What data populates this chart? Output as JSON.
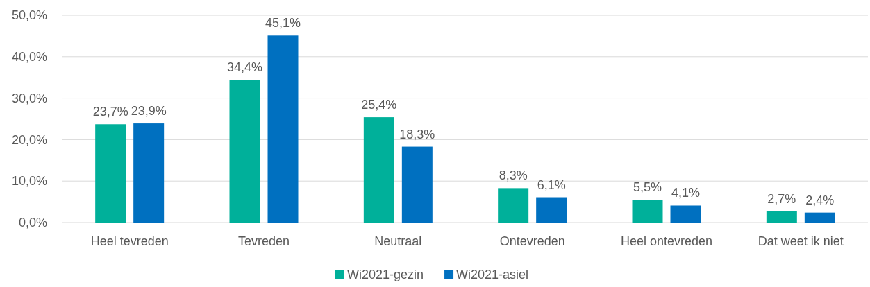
{
  "chart_data": {
    "type": "bar",
    "categories": [
      "Heel tevreden",
      "Tevreden",
      "Neutraal",
      "Ontevreden",
      "Heel ontevreden",
      "Dat weet ik niet"
    ],
    "series": [
      {
        "name": "Wi2021-gezin",
        "color": "#00b09a",
        "values": [
          23.7,
          34.4,
          25.4,
          8.3,
          5.5,
          2.7
        ],
        "value_labels": [
          "23,7%",
          "34,4%",
          "25,4%",
          "8,3%",
          "5,5%",
          "2,7%"
        ]
      },
      {
        "name": "Wi2021-asiel",
        "color": "#0070c0",
        "values": [
          23.9,
          45.1,
          18.3,
          6.1,
          4.1,
          2.4
        ],
        "value_labels": [
          "23,9%",
          "45,1%",
          "18,3%",
          "6,1%",
          "4,1%",
          "2,4%"
        ]
      }
    ],
    "ylim": [
      0,
      50
    ],
    "yticks": [
      {
        "value": 0,
        "label": "0,0%"
      },
      {
        "value": 10,
        "label": "10,0%"
      },
      {
        "value": 20,
        "label": "20,0%"
      },
      {
        "value": 30,
        "label": "30,0%"
      },
      {
        "value": 40,
        "label": "40,0%"
      },
      {
        "value": 50,
        "label": "50,0%"
      }
    ],
    "grid": "y",
    "legend": "bottom"
  }
}
